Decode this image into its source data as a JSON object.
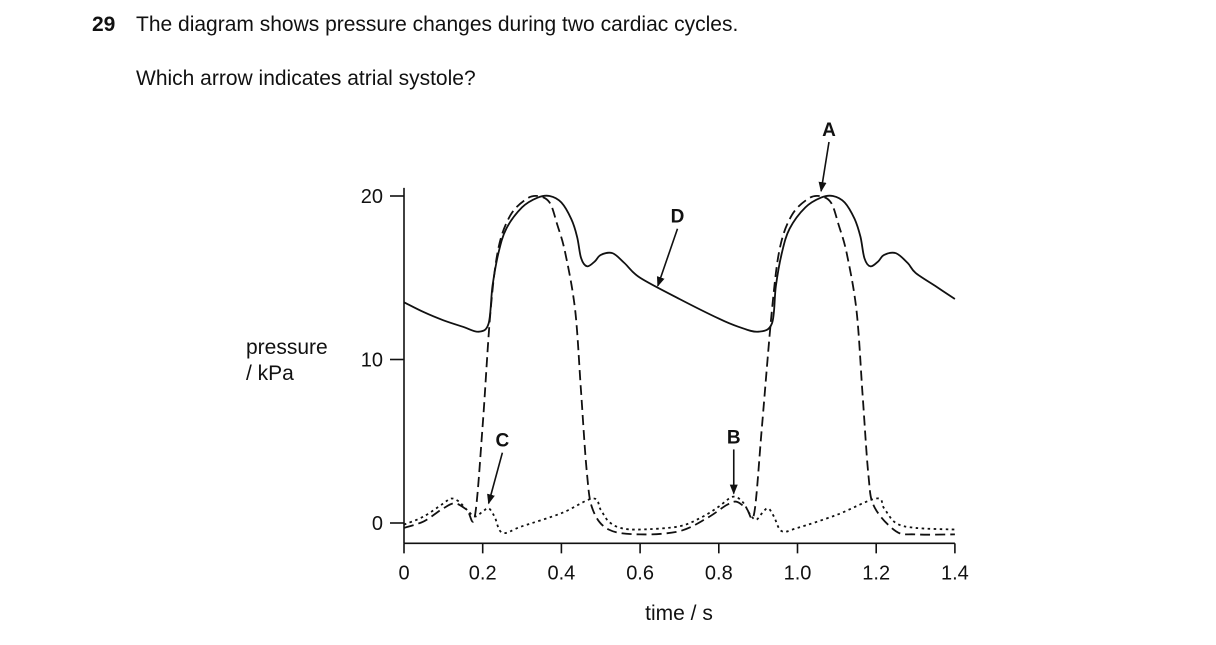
{
  "question": {
    "number": "29",
    "text": "The diagram shows pressure changes during two cardiac cycles.",
    "prompt": "Which arrow indicates atrial systole?"
  },
  "chart_data": {
    "type": "line",
    "xlabel": "time / s",
    "ylabel_line1": "pressure",
    "ylabel_line2": "/ kPa",
    "xlim": [
      0,
      1.4
    ],
    "ylim": [
      -1,
      20.5
    ],
    "xticks": [
      {
        "value": 0,
        "label": "0"
      },
      {
        "value": 0.2,
        "label": "0.2"
      },
      {
        "value": 0.4,
        "label": "0.4"
      },
      {
        "value": 0.6,
        "label": "0.6"
      },
      {
        "value": 0.8,
        "label": "0.8"
      },
      {
        "value": 1.0,
        "label": "1.0"
      },
      {
        "value": 1.2,
        "label": "1.2"
      },
      {
        "value": 1.4,
        "label": "1.4"
      }
    ],
    "yticks": [
      {
        "value": 0,
        "label": "0"
      },
      {
        "value": 10,
        "label": "10"
      },
      {
        "value": 20,
        "label": "20"
      }
    ],
    "series": [
      {
        "style": "solid",
        "points": [
          [
            0,
            13.5
          ],
          [
            0.05,
            12.9
          ],
          [
            0.1,
            12.4
          ],
          [
            0.15,
            12.0
          ],
          [
            0.19,
            11.7
          ],
          [
            0.215,
            12.2
          ],
          [
            0.225,
            14.5
          ],
          [
            0.24,
            16.5
          ],
          [
            0.26,
            18.0
          ],
          [
            0.3,
            19.3
          ],
          [
            0.34,
            19.9
          ],
          [
            0.37,
            20.0
          ],
          [
            0.4,
            19.6
          ],
          [
            0.425,
            18.6
          ],
          [
            0.44,
            17.5
          ],
          [
            0.45,
            16.2
          ],
          [
            0.465,
            15.7
          ],
          [
            0.485,
            16.0
          ],
          [
            0.5,
            16.4
          ],
          [
            0.53,
            16.5
          ],
          [
            0.56,
            15.9
          ],
          [
            0.6,
            15.0
          ],
          [
            0.7,
            13.7
          ],
          [
            0.8,
            12.5
          ],
          [
            0.85,
            12.0
          ],
          [
            0.9,
            11.7
          ],
          [
            0.935,
            12.2
          ],
          [
            0.945,
            14.5
          ],
          [
            0.96,
            16.5
          ],
          [
            0.98,
            18.0
          ],
          [
            1.02,
            19.3
          ],
          [
            1.06,
            19.9
          ],
          [
            1.09,
            20.0
          ],
          [
            1.12,
            19.6
          ],
          [
            1.145,
            18.6
          ],
          [
            1.16,
            17.5
          ],
          [
            1.17,
            16.2
          ],
          [
            1.185,
            15.7
          ],
          [
            1.205,
            16.0
          ],
          [
            1.22,
            16.4
          ],
          [
            1.25,
            16.5
          ],
          [
            1.28,
            15.9
          ],
          [
            1.3,
            15.3
          ],
          [
            1.35,
            14.5
          ],
          [
            1.4,
            13.7
          ]
        ]
      },
      {
        "style": "dashed",
        "points": [
          [
            0,
            -0.3
          ],
          [
            0.05,
            0.1
          ],
          [
            0.1,
            0.9
          ],
          [
            0.13,
            1.2
          ],
          [
            0.16,
            0.8
          ],
          [
            0.18,
            0.4
          ],
          [
            0.2,
            6.0
          ],
          [
            0.22,
            13.0
          ],
          [
            0.24,
            16.8
          ],
          [
            0.27,
            18.8
          ],
          [
            0.31,
            19.8
          ],
          [
            0.34,
            20.0
          ],
          [
            0.37,
            19.6
          ],
          [
            0.39,
            18.2
          ],
          [
            0.41,
            16.5
          ],
          [
            0.435,
            13.0
          ],
          [
            0.45,
            8.0
          ],
          [
            0.465,
            3.0
          ],
          [
            0.48,
            0.8
          ],
          [
            0.52,
            -0.4
          ],
          [
            0.6,
            -0.7
          ],
          [
            0.7,
            -0.5
          ],
          [
            0.77,
            0.3
          ],
          [
            0.82,
            1.1
          ],
          [
            0.845,
            1.3
          ],
          [
            0.87,
            0.9
          ],
          [
            0.89,
            0.6
          ],
          [
            0.91,
            6.0
          ],
          [
            0.935,
            13.0
          ],
          [
            0.955,
            16.8
          ],
          [
            0.985,
            18.8
          ],
          [
            1.025,
            19.8
          ],
          [
            1.055,
            20.0
          ],
          [
            1.085,
            19.6
          ],
          [
            1.105,
            18.2
          ],
          [
            1.125,
            16.5
          ],
          [
            1.15,
            13.0
          ],
          [
            1.165,
            8.0
          ],
          [
            1.18,
            3.0
          ],
          [
            1.195,
            1.0
          ],
          [
            1.25,
            -0.5
          ],
          [
            1.3,
            -0.7
          ],
          [
            1.4,
            -0.7
          ]
        ]
      },
      {
        "style": "dotted",
        "points": [
          [
            0,
            -0.1
          ],
          [
            0.05,
            0.4
          ],
          [
            0.1,
            1.2
          ],
          [
            0.12,
            1.5
          ],
          [
            0.14,
            1.3
          ],
          [
            0.16,
            0.8
          ],
          [
            0.18,
            0.4
          ],
          [
            0.2,
            0.7
          ],
          [
            0.215,
            0.9
          ],
          [
            0.23,
            0.4
          ],
          [
            0.25,
            -0.6
          ],
          [
            0.3,
            -0.2
          ],
          [
            0.4,
            0.6
          ],
          [
            0.48,
            1.5
          ],
          [
            0.5,
            0.8
          ],
          [
            0.52,
            0.1
          ],
          [
            0.55,
            -0.3
          ],
          [
            0.6,
            -0.4
          ],
          [
            0.7,
            -0.2
          ],
          [
            0.76,
            0.4
          ],
          [
            0.8,
            1.0
          ],
          [
            0.835,
            1.6
          ],
          [
            0.86,
            1.3
          ],
          [
            0.88,
            0.5
          ],
          [
            0.895,
            0.2
          ],
          [
            0.91,
            0.6
          ],
          [
            0.925,
            0.9
          ],
          [
            0.94,
            0.4
          ],
          [
            0.96,
            -0.5
          ],
          [
            1.0,
            -0.3
          ],
          [
            1.1,
            0.5
          ],
          [
            1.2,
            1.5
          ],
          [
            1.22,
            0.9
          ],
          [
            1.25,
            0.0
          ],
          [
            1.3,
            -0.3
          ],
          [
            1.4,
            -0.4
          ]
        ]
      }
    ],
    "annotations": [
      {
        "label": "A",
        "tail": [
          1.08,
          23.3
        ],
        "head": [
          1.06,
          20.3
        ]
      },
      {
        "label": "B",
        "tail": [
          0.838,
          4.5
        ],
        "head": [
          0.838,
          1.8
        ]
      },
      {
        "label": "C",
        "tail": [
          0.25,
          4.3
        ],
        "head": [
          0.215,
          1.2
        ]
      },
      {
        "label": "D",
        "tail": [
          0.695,
          18.0
        ],
        "head": [
          0.645,
          14.5
        ]
      }
    ],
    "colors": {
      "ink": "#111111"
    }
  }
}
